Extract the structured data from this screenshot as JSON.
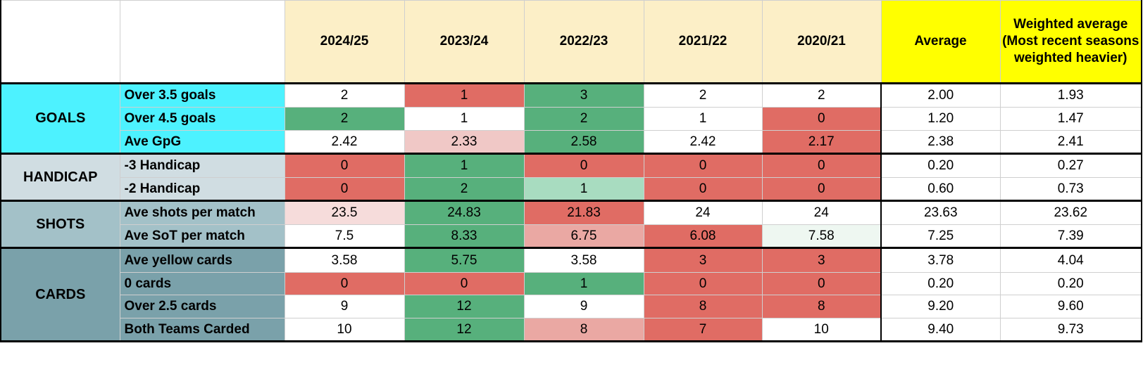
{
  "columns": [
    "2024/25",
    "2023/24",
    "2022/23",
    "2021/22",
    "2020/21",
    "Average",
    "Weighted average (Most recent seasons weighted heavier)"
  ],
  "colors": {
    "header_season_bg": "#fcefc7",
    "header_avg_bg": "#ffff00",
    "red": "#e06c64",
    "light_red": "#f0c8c6",
    "pale_red": "#f6dcdb",
    "mid_red": "#eaa8a3",
    "green": "#57b07c",
    "light_green": "#a8dcc0",
    "pale_green": "#eef7f1",
    "white": "#ffffff"
  },
  "groups": [
    {
      "name": "GOALS",
      "color": "#4df2ff",
      "rows": [
        {
          "label": "Over 3.5 goals",
          "values": [
            "2",
            "1",
            "3",
            "2",
            "2",
            "2.00",
            "1.93"
          ],
          "colors": [
            "white",
            "red",
            "green",
            "white",
            "white",
            "white",
            "white"
          ]
        },
        {
          "label": "Over 4.5 goals",
          "values": [
            "2",
            "1",
            "2",
            "1",
            "0",
            "1.20",
            "1.47"
          ],
          "colors": [
            "green",
            "white",
            "green",
            "white",
            "red",
            "white",
            "white"
          ]
        },
        {
          "label": "Ave GpG",
          "values": [
            "2.42",
            "2.33",
            "2.58",
            "2.42",
            "2.17",
            "2.38",
            "2.41"
          ],
          "colors": [
            "white",
            "light_red",
            "green",
            "white",
            "red",
            "white",
            "white"
          ]
        }
      ]
    },
    {
      "name": "HANDICAP",
      "color": "#d0dde2",
      "rows": [
        {
          "label": "-3 Handicap",
          "values": [
            "0",
            "1",
            "0",
            "0",
            "0",
            "0.20",
            "0.27"
          ],
          "colors": [
            "red",
            "green",
            "red",
            "red",
            "red",
            "white",
            "white"
          ]
        },
        {
          "label": "-2 Handicap",
          "values": [
            "0",
            "2",
            "1",
            "0",
            "0",
            "0.60",
            "0.73"
          ],
          "colors": [
            "red",
            "green",
            "light_green",
            "red",
            "red",
            "white",
            "white"
          ]
        }
      ]
    },
    {
      "name": "SHOTS",
      "color": "#a3c1c8",
      "rows": [
        {
          "label": "Ave shots per match",
          "values": [
            "23.5",
            "24.83",
            "21.83",
            "24",
            "24",
            "23.63",
            "23.62"
          ],
          "colors": [
            "pale_red",
            "green",
            "red",
            "white",
            "white",
            "white",
            "white"
          ]
        },
        {
          "label": "Ave SoT per match",
          "values": [
            "7.5",
            "8.33",
            "6.75",
            "6.08",
            "7.58",
            "7.25",
            "7.39"
          ],
          "colors": [
            "white",
            "green",
            "mid_red",
            "red",
            "pale_green",
            "white",
            "white"
          ]
        }
      ]
    },
    {
      "name": "CARDS",
      "color": "#7aa1aa",
      "rows": [
        {
          "label": "Ave yellow cards",
          "values": [
            "3.58",
            "5.75",
            "3.58",
            "3",
            "3",
            "3.78",
            "4.04"
          ],
          "colors": [
            "white",
            "green",
            "white",
            "red",
            "red",
            "white",
            "white"
          ]
        },
        {
          "label": "0 cards",
          "values": [
            "0",
            "0",
            "1",
            "0",
            "0",
            "0.20",
            "0.20"
          ],
          "colors": [
            "red",
            "red",
            "green",
            "red",
            "red",
            "white",
            "white"
          ]
        },
        {
          "label": "Over 2.5 cards",
          "values": [
            "9",
            "12",
            "9",
            "8",
            "8",
            "9.20",
            "9.60"
          ],
          "colors": [
            "white",
            "green",
            "white",
            "red",
            "red",
            "white",
            "white"
          ]
        },
        {
          "label": "Both Teams Carded",
          "values": [
            "10",
            "12",
            "8",
            "7",
            "10",
            "9.40",
            "9.73"
          ],
          "colors": [
            "white",
            "green",
            "mid_red",
            "red",
            "white",
            "white",
            "white"
          ]
        }
      ]
    }
  ]
}
